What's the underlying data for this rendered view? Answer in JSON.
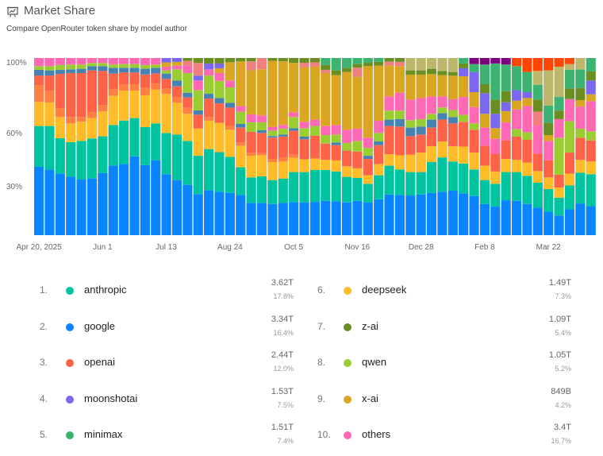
{
  "header": {
    "title": "Market Share",
    "subtitle": "Compare OpenRouter token share by model author"
  },
  "legend": [
    {
      "rank": "1.",
      "name": "anthropic",
      "value": "3.62T",
      "share": "17.8%",
      "color": "#00C49F"
    },
    {
      "rank": "2.",
      "name": "google",
      "value": "3.34T",
      "share": "16.4%",
      "color": "#0A84FF"
    },
    {
      "rank": "3.",
      "name": "openai",
      "value": "2.44T",
      "share": "12.0%",
      "color": "#FF6347"
    },
    {
      "rank": "4.",
      "name": "moonshotai",
      "value": "1.53T",
      "share": "7.5%",
      "color": "#7B68EE"
    },
    {
      "rank": "5.",
      "name": "minimax",
      "value": "1.51T",
      "share": "7.4%",
      "color": "#3CB371"
    },
    {
      "rank": "6.",
      "name": "deepseek",
      "value": "1.49T",
      "share": "7.3%",
      "color": "#FFBB28"
    },
    {
      "rank": "7.",
      "name": "z-ai",
      "value": "1.09T",
      "share": "5.4%",
      "color": "#6B8E23"
    },
    {
      "rank": "8.",
      "name": "qwen",
      "value": "1.05T",
      "share": "5.2%",
      "color": "#9ACD32"
    },
    {
      "rank": "9.",
      "name": "x-ai",
      "value": "849B",
      "share": "4.2%",
      "color": "#DAA520"
    },
    {
      "rank": "10.",
      "name": "others",
      "value": "3.4T",
      "share": "16.7%",
      "color": "#FF69B4"
    }
  ],
  "chart_data": {
    "type": "bar",
    "stacked": true,
    "normalized": true,
    "ylim": [
      0,
      100
    ],
    "yticks": [
      {
        "value": 100,
        "label": "100%"
      },
      {
        "value": 60,
        "label": "60%"
      },
      {
        "value": 30,
        "label": "30%"
      }
    ],
    "xticks": [
      {
        "index": 0,
        "label": "Apr 20, 2025"
      },
      {
        "index": 6,
        "label": "Jun 1"
      },
      {
        "index": 12,
        "label": "Jul 13"
      },
      {
        "index": 18,
        "label": "Aug 24"
      },
      {
        "index": 24,
        "label": "Oct 5"
      },
      {
        "index": 30,
        "label": "Nov 16"
      },
      {
        "index": 36,
        "label": "Dec 28"
      },
      {
        "index": 42,
        "label": "Feb 8"
      },
      {
        "index": 48,
        "label": "Mar 22"
      }
    ],
    "series": [
      {
        "name": "google",
        "color": "#0A84FF"
      },
      {
        "name": "anthropic",
        "color": "#00C49F"
      },
      {
        "name": "deepseek",
        "color": "#FFBB28"
      },
      {
        "name": "",
        "color": "#FF8042"
      },
      {
        "name": "openai",
        "color": "#FF6347"
      },
      {
        "name": "",
        "color": "#4682B4"
      },
      {
        "name": "qwen",
        "color": "#9ACD32"
      },
      {
        "name": "others",
        "color": "#FF69B4"
      },
      {
        "name": "x-ai",
        "color": "#DAA520"
      },
      {
        "name": "moonshotai",
        "color": "#7B68EE"
      },
      {
        "name": "",
        "color": "#F08080"
      },
      {
        "name": "z-ai",
        "color": "#6B8E23"
      },
      {
        "name": "minimax",
        "color": "#3CB371"
      },
      {
        "name": "",
        "color": "#BDB76B"
      },
      {
        "name": "",
        "color": "#800080"
      },
      {
        "name": "",
        "color": "#FF4500"
      }
    ],
    "values_by_week_percent": [
      [
        38.6,
        23,
        13.6,
        9.4,
        5.5,
        3.2,
        2.1,
        4.6
      ],
      [
        37.1,
        24.5,
        13.3,
        6.7,
        8.5,
        2.9,
        2.4,
        4.6
      ],
      [
        34.7,
        20,
        12,
        5,
        19.3,
        2.3,
        2.7,
        4
      ],
      [
        33,
        19.5,
        10.6,
        3.6,
        24.8,
        2.1,
        2.7,
        3.7
      ],
      [
        31.4,
        21.8,
        10.8,
        2.7,
        24.8,
        2.4,
        2.4,
        3.7
      ],
      [
        32,
        22.6,
        11.5,
        3.4,
        23.5,
        2.4,
        1.8,
        2.8
      ],
      [
        35.1,
        20.7,
        14,
        3.7,
        19.2,
        2.7,
        1.8,
        2.8
      ],
      [
        39.3,
        22.9,
        16.4,
        3.9,
        8.7,
        3.3,
        1.8,
        3.7
      ],
      [
        40.1,
        24.6,
        16.9,
        3.3,
        6.9,
        2.7,
        2.1,
        3.4
      ],
      [
        44.5,
        21.6,
        15.5,
        3.6,
        6.6,
        2.7,
        2.1,
        3.4
      ],
      [
        39.6,
        21.4,
        17.9,
        4.5,
        7.3,
        3.2,
        2.1,
        4
      ],
      [
        42.3,
        20.8,
        19,
        3.4,
        5.8,
        3.2,
        1.8,
        3.7
      ],
      [
        34.4,
        23.3,
        22,
        3,
        5.5,
        3,
        1.8,
        2.1,
        2.4,
        2.5
      ],
      [
        31.1,
        25.7,
        17.9,
        3.3,
        6,
        3.3,
        6.3,
        2.1,
        2.1,
        2.2
      ],
      [
        28.4,
        24.8,
        15.3,
        3.5,
        5.7,
        2.7,
        11.1,
        4.2,
        0,
        0,
        2.7,
        1.6
      ],
      [
        23.2,
        21.6,
        15.4,
        0,
        7.8,
        2.4,
        11.5,
        5.4,
        0,
        2.7,
        7.2,
        2.8
      ],
      [
        25.4,
        23.2,
        16,
        2.1,
        10.4,
        2.7,
        10.3,
        3.5,
        0,
        3.3,
        0,
        3.1
      ],
      [
        24.5,
        22.4,
        16.5,
        0,
        11,
        3,
        9.7,
        4.4,
        2.7,
        2.7,
        0,
        3.1
      ],
      [
        23.9,
        20.3,
        15.3,
        2.1,
        10.4,
        2.7,
        8.7,
        3.9,
        10.3,
        0,
        0,
        2.4
      ],
      [
        22.7,
        15.6,
        12.2,
        1.8,
        8.4,
        2.1,
        6.9,
        3.2,
        25.2,
        0,
        0,
        1.9
      ],
      [
        18.2,
        14.4,
        12.2,
        1.8,
        11.7,
        0,
        5.4,
        4.5,
        24.8,
        0,
        5.1,
        1.9
      ],
      [
        18.2,
        15,
        11.9,
        1.2,
        11.4,
        1.5,
        4.5,
        3.9,
        26,
        0,
        6.4,
        0
      ],
      [
        17.6,
        13.5,
        10.2,
        1.8,
        12,
        0.9,
        3,
        2.1,
        37.4,
        0,
        0,
        1.6
      ],
      [
        18.2,
        13.8,
        9.6,
        2.4,
        11.7,
        1.2,
        3.3,
        2.1,
        35.9,
        0,
        0,
        1.9
      ],
      [
        18.7,
        16.9,
        8,
        1.8,
        13.5,
        1.5,
        6.3,
        2.7,
        27.8,
        0,
        0,
        2.8
      ],
      [
        18.5,
        17.1,
        7.2,
        0,
        11.3,
        1.5,
        4.8,
        3.6,
        30.8,
        0,
        2.5,
        2.7
      ],
      [
        18.8,
        18,
        6.5,
        0,
        12.9,
        0,
        5.4,
        3.6,
        29.9,
        0,
        2.4,
        2.5
      ],
      [
        19.4,
        17.4,
        5.7,
        0,
        9.2,
        0,
        4.8,
        5.1,
        29.9,
        0,
        1.8,
        2.7,
        4
      ],
      [
        19.1,
        16.8,
        6.3,
        0,
        8.6,
        1.5,
        4.5,
        5.4,
        28.1,
        0,
        0,
        2.7,
        7
      ],
      [
        18.5,
        14.4,
        6,
        0,
        8.9,
        0,
        4.2,
        7.5,
        32.6,
        0,
        0,
        2.4,
        5.5
      ],
      [
        19.4,
        12.9,
        5.4,
        0,
        9.5,
        0,
        6,
        6.9,
        29.3,
        0,
        5.1,
        2.1,
        3.4
      ],
      [
        18.4,
        10.6,
        4.8,
        0,
        9.2,
        1.8,
        4.5,
        5.7,
        40.4,
        0,
        0,
        2.1,
        2.5
      ],
      [
        20.3,
        13.5,
        6.3,
        0,
        10.7,
        2.1,
        4.8,
        6.9,
        31.1,
        0,
        0,
        2.1,
        2.2
      ],
      [
        23,
        16.2,
        6.5,
        0,
        15.9,
        3.6,
        5.1,
        8,
        17.4,
        0,
        2.2,
        2.1
      ],
      [
        22.7,
        14.4,
        8,
        0,
        16.2,
        4.2,
        4.8,
        10.1,
        15,
        0,
        2.4,
        2.2
      ],
      [
        22.4,
        13.2,
        9.8,
        0,
        10.5,
        4.8,
        4.2,
        11.6,
        14.1,
        0,
        0,
        2.4,
        0,
        7
      ],
      [
        23,
        12.6,
        11,
        0,
        10.2,
        4.5,
        4.2,
        11.9,
        13.2,
        0,
        0,
        2.4,
        0,
        7
      ],
      [
        23.9,
        17.4,
        8.9,
        0,
        10.5,
        4.5,
        3.3,
        9.8,
        12.6,
        0,
        0,
        3,
        0,
        6.1
      ],
      [
        24.5,
        19.4,
        9,
        0,
        12.3,
        3.6,
        3.3,
        6.2,
        12,
        0,
        0,
        2.4,
        0,
        7.3
      ],
      [
        25.1,
        16.5,
        8.6,
        0,
        12.9,
        3.6,
        3.9,
        6.2,
        13.2,
        0,
        0,
        2.1,
        0,
        7.9
      ],
      [
        23.6,
        16.8,
        9.6,
        0,
        14,
        0,
        3.9,
        10.1,
        11.7,
        4.5,
        0,
        2.7,
        3.1
      ],
      [
        22.1,
        15,
        9.5,
        0,
        12.9,
        0,
        3.6,
        9.2,
        8.4,
        11.4,
        0,
        0,
        4.5,
        0,
        3.4
      ],
      [
        17.6,
        13.5,
        8.1,
        0,
        11.3,
        0,
        0,
        10.2,
        7.8,
        11.6,
        0,
        5.1,
        11.1,
        0,
        3.7
      ],
      [
        16.1,
        12.9,
        6.9,
        0,
        10.1,
        0,
        0,
        8.4,
        6,
        8.1,
        0,
        8,
        20.4,
        0,
        3.1
      ],
      [
        19.7,
        15.9,
        7.4,
        0,
        10.5,
        0,
        0,
        10.2,
        6.3,
        5,
        0,
        6.3,
        15,
        0,
        3.7
      ],
      [
        19.4,
        16.2,
        6.9,
        0,
        13.1,
        0,
        4.2,
        11.1,
        5,
        6,
        0,
        0,
        13.5,
        0,
        0,
        4.6
      ],
      [
        17.6,
        15.9,
        7.5,
        0,
        12.8,
        0,
        4.2,
        14.9,
        4.5,
        3.3,
        0,
        0,
        11.4,
        0,
        0,
        7.9
      ],
      [
        15.5,
        14.1,
        6.6,
        0,
        9.8,
        0,
        0,
        15.9,
        0,
        0,
        7.8,
        6.8,
        8.4,
        7.8,
        0,
        7.3
      ],
      [
        13.2,
        12.8,
        6.6,
        0,
        9.6,
        0,
        0,
        11,
        3.3,
        0,
        0,
        6.9,
        9.8,
        19.8,
        0,
        7
      ],
      [
        11.1,
        10.1,
        5.7,
        0,
        7.2,
        0,
        20.9,
        10.5,
        0,
        0,
        0,
        4.8,
        7.7,
        17.1,
        0,
        4.9
      ],
      [
        14.6,
        13.5,
        6.6,
        0,
        11.9,
        0,
        17.7,
        12.5,
        0,
        0,
        0,
        6,
        10.5,
        3.3,
        0,
        3.4
      ],
      [
        17.9,
        17.4,
        7.2,
        0,
        12.5,
        0,
        5.1,
        12.5,
        3.6,
        0,
        0,
        6.9,
        10.5,
        6.4
      ],
      [
        16.4,
        18,
        7.2,
        0,
        11.9,
        0,
        5.1,
        17,
        3.9,
        7.8,
        0,
        5.1,
        7.6
      ]
    ]
  }
}
